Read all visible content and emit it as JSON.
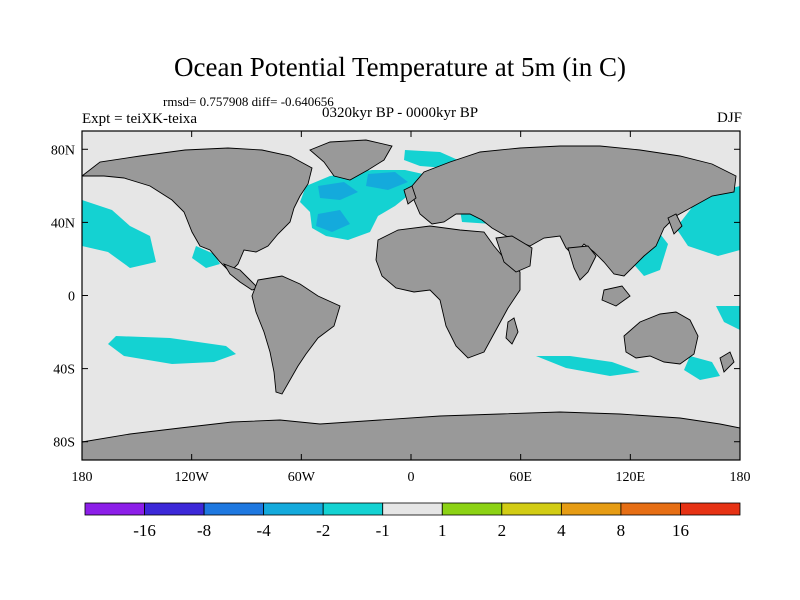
{
  "title": "Ocean Potential Temperature at 5m (in C)",
  "stats": "rmsd= 0.757908  diff= -0.640656",
  "experiment": "Expt = teiXK-teixa",
  "period": "0320kyr BP - 0000kyr BP",
  "season": "DJF",
  "lon_ticks": [
    "180",
    "120W",
    "60W",
    "0",
    "60E",
    "120E",
    "180"
  ],
  "lat_ticks": [
    "80N",
    "40N",
    "0",
    "40S",
    "80S"
  ],
  "colorbar": {
    "colors": [
      "#8c1ee8",
      "#3c28d8",
      "#1e78e0",
      "#14aadc",
      "#14d2d2",
      "#e6e6e6",
      "#8cd214",
      "#d2cc14",
      "#e69c14",
      "#e66e14",
      "#e63214"
    ],
    "labels": [
      "-16",
      "-8",
      "-4",
      "-2",
      "-1",
      "1",
      "2",
      "4",
      "8",
      "16"
    ]
  },
  "colors": {
    "ocean": "#e6e6e6",
    "land": "#999999",
    "cool": "#14d2d2",
    "cooler": "#14aadc"
  }
}
